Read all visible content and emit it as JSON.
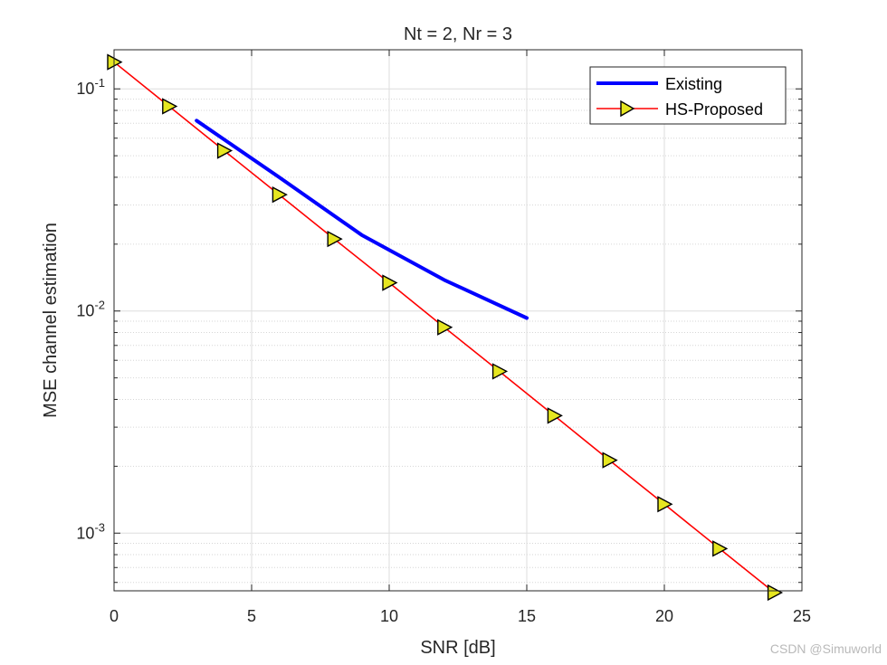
{
  "chart_data": {
    "type": "line",
    "title": "Nt = 2, Nr = 3",
    "xlabel": "SNR [dB]",
    "ylabel": "MSE channel estimation",
    "xlim": [
      0,
      25
    ],
    "ylim": [
      0.00055,
      0.15
    ],
    "yscale": "log",
    "grid": true,
    "legend_position": "top-right",
    "xticks": [
      0,
      5,
      10,
      15,
      20,
      25
    ],
    "yticks": [
      {
        "value": 0.1,
        "base": "10",
        "exp": "-1"
      },
      {
        "value": 0.01,
        "base": "10",
        "exp": "-2"
      },
      {
        "value": 0.001,
        "base": "10",
        "exp": "-3"
      }
    ],
    "series": [
      {
        "name": "Existing",
        "color": "#0000ff",
        "marker": "none",
        "x": [
          3,
          6,
          9,
          12,
          15
        ],
        "y": [
          0.072,
          0.04,
          0.022,
          0.0138,
          0.0093
        ]
      },
      {
        "name": "HS-Proposed",
        "color": "#ff0000",
        "marker": "triangle-right",
        "marker_face": "#e6e620",
        "x": [
          0,
          2,
          4,
          6,
          8,
          10,
          12,
          14,
          16,
          18,
          20,
          22,
          24
        ],
        "y": [
          0.132,
          0.0835,
          0.0527,
          0.0334,
          0.0211,
          0.0134,
          0.00845,
          0.00535,
          0.00338,
          0.00213,
          0.00135,
          0.000852,
          0.00054
        ]
      }
    ]
  },
  "watermark": "CSDN @Simuworld"
}
